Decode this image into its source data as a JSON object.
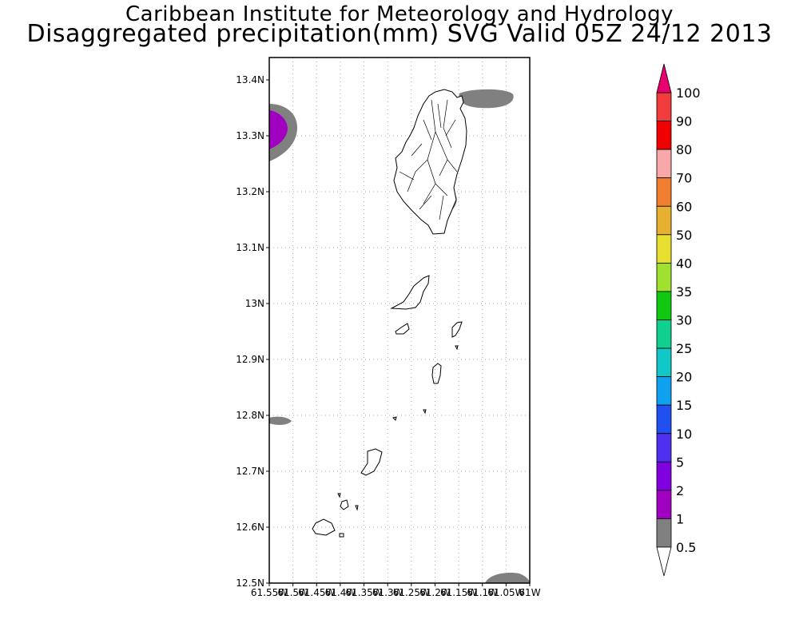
{
  "header": {
    "line1": "Caribbean Institute for Meteorology and Hydrology",
    "line2": "Disaggregated precipitation(mm) SVG Valid 05Z 24/12 2013"
  },
  "map": {
    "lon_range": [
      -61.55,
      -61.0
    ],
    "lat_range": [
      12.5,
      13.45
    ],
    "lat_ticks": [
      "13.4N",
      "13.3N",
      "13.2N",
      "13.1N",
      "13N",
      "12.9N",
      "12.8N",
      "12.7N",
      "12.6N",
      "12.5N"
    ],
    "lon_ticks": [
      "61.55W",
      "61.5W",
      "61.45W",
      "61.4W",
      "61.35W",
      "61.3W",
      "61.25W",
      "61.2W",
      "61.15W",
      "61.1W",
      "61.05W",
      "61W"
    ],
    "grid": true
  },
  "colorbar": {
    "labels": [
      "100",
      "90",
      "80",
      "70",
      "60",
      "50",
      "40",
      "35",
      "30",
      "25",
      "20",
      "15",
      "10",
      "5",
      "2",
      "1",
      "0.5"
    ],
    "colors": [
      "#e8006e",
      "#f03c3c",
      "#f00000",
      "#f8a8a8",
      "#f08030",
      "#e8b030",
      "#e8e030",
      "#a0e030",
      "#10c810",
      "#10d090",
      "#10c8c8",
      "#10a0f0",
      "#2050f0",
      "#5030f0",
      "#8000e0",
      "#a000c0",
      "#808080",
      "#ffffff"
    ]
  }
}
